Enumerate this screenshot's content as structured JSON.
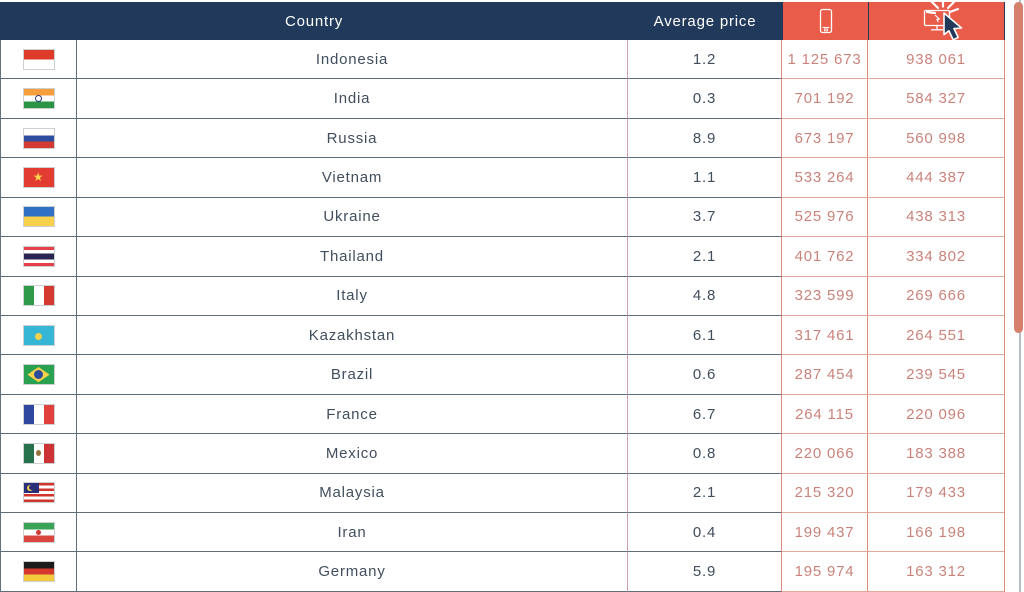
{
  "header": {
    "country_label": "Country",
    "avg_price_label": "Average price",
    "mobile_column_icon": "smartphone-icon",
    "desktop_column_icon": "desktop-click-icon"
  },
  "colors": {
    "header_navy": "#21395a",
    "accent_coral": "#ea5c4a",
    "value_rose": "#c9837b",
    "text_slate": "#414e5d",
    "row_border_gray": "#5c6e7c",
    "coral_border": "#dd8a7b",
    "scrollbar_thumb": "#d67f6d"
  },
  "table": {
    "rows": [
      {
        "flag": "indonesia",
        "country": "Indonesia",
        "avg_price": "1.2",
        "mobile": "1 125 673",
        "desktop": "938 061"
      },
      {
        "flag": "india",
        "country": "India",
        "avg_price": "0.3",
        "mobile": "701 192",
        "desktop": "584 327"
      },
      {
        "flag": "russia",
        "country": "Russia",
        "avg_price": "8.9",
        "mobile": "673 197",
        "desktop": "560 998"
      },
      {
        "flag": "vietnam",
        "country": "Vietnam",
        "avg_price": "1.1",
        "mobile": "533 264",
        "desktop": "444 387"
      },
      {
        "flag": "ukraine",
        "country": "Ukraine",
        "avg_price": "3.7",
        "mobile": "525 976",
        "desktop": "438 313"
      },
      {
        "flag": "thailand",
        "country": "Thailand",
        "avg_price": "2.1",
        "mobile": "401 762",
        "desktop": "334 802"
      },
      {
        "flag": "italy",
        "country": "Italy",
        "avg_price": "4.8",
        "mobile": "323 599",
        "desktop": "269 666"
      },
      {
        "flag": "kazakhstan",
        "country": "Kazakhstan",
        "avg_price": "6.1",
        "mobile": "317 461",
        "desktop": "264 551"
      },
      {
        "flag": "brazil",
        "country": "Brazil",
        "avg_price": "0.6",
        "mobile": "287 454",
        "desktop": "239 545"
      },
      {
        "flag": "france",
        "country": "France",
        "avg_price": "6.7",
        "mobile": "264 115",
        "desktop": "220 096"
      },
      {
        "flag": "mexico",
        "country": "Mexico",
        "avg_price": "0.8",
        "mobile": "220 066",
        "desktop": "183 388"
      },
      {
        "flag": "malaysia",
        "country": "Malaysia",
        "avg_price": "2.1",
        "mobile": "215 320",
        "desktop": "179 433"
      },
      {
        "flag": "iran",
        "country": "Iran",
        "avg_price": "0.4",
        "mobile": "199 437",
        "desktop": "166 198"
      },
      {
        "flag": "germany",
        "country": "Germany",
        "avg_price": "5.9",
        "mobile": "195 974",
        "desktop": "163 312"
      }
    ]
  }
}
